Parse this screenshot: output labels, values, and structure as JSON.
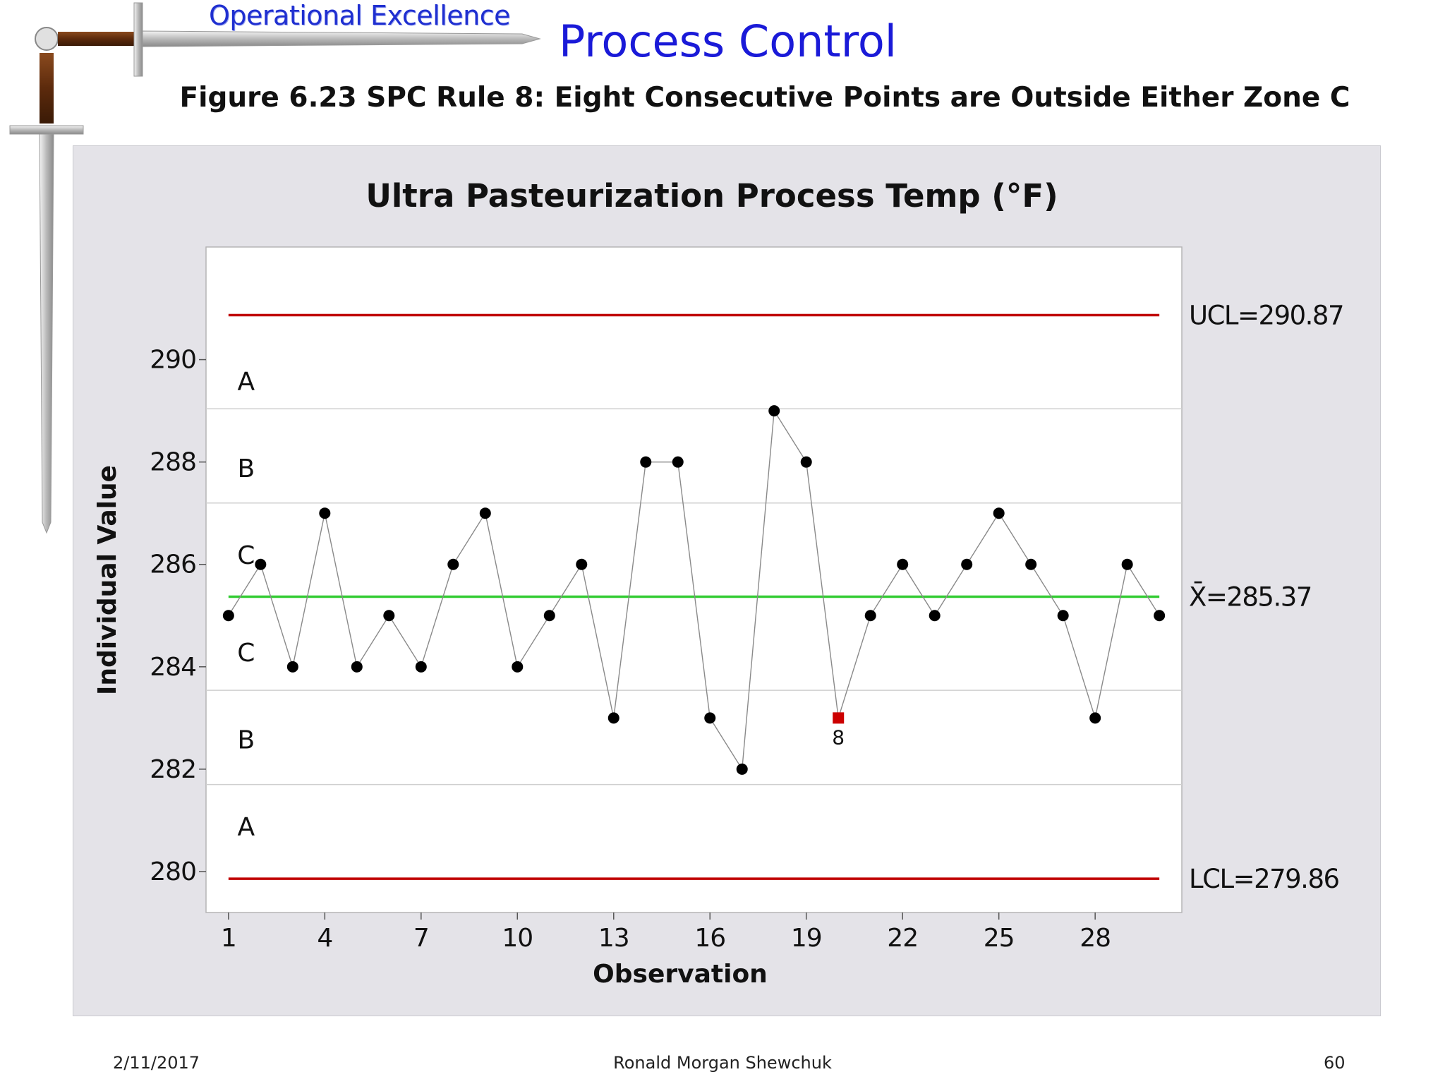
{
  "header": {
    "brand": "Operational Excellence",
    "title": "Process Control",
    "figure_caption": "Figure 6.23  SPC Rule 8:  Eight Consecutive Points are Outside Either Zone C"
  },
  "footer": {
    "date": "2/11/2017",
    "author": "Ronald Morgan Shewchuk",
    "page": "60"
  },
  "colors": {
    "control_limit": "#c00000",
    "center_line": "#33cc33",
    "point": "#000000",
    "flagged_point": "#cc0000",
    "panel": "#e4e3e8",
    "plot": "#ffffff"
  },
  "icons": [
    "sword-icon"
  ],
  "chart_data": {
    "type": "line",
    "title": "Ultra Pasteurization Process Temp (°F)",
    "xlabel": "Observation",
    "ylabel": "Individual Value",
    "ylim": [
      279.2,
      292.2
    ],
    "xlim": [
      0.3,
      30.7
    ],
    "yticks": [
      280,
      282,
      284,
      286,
      288,
      290
    ],
    "xticks": [
      1,
      4,
      7,
      10,
      13,
      16,
      19,
      22,
      25,
      28
    ],
    "x": [
      1,
      2,
      3,
      4,
      5,
      6,
      7,
      8,
      9,
      10,
      11,
      12,
      13,
      14,
      15,
      16,
      17,
      18,
      19,
      20,
      21,
      22,
      23,
      24,
      25,
      26,
      27,
      28,
      29,
      30
    ],
    "values": [
      285,
      286,
      284,
      287,
      284,
      285,
      284,
      286,
      287,
      284,
      285,
      286,
      283,
      288,
      288,
      283,
      282,
      289,
      288,
      283,
      285,
      286,
      285,
      286,
      287,
      286,
      285,
      283,
      286,
      285
    ],
    "control_limits": {
      "ucl": {
        "value": 290.87,
        "label": "UCL=290.87"
      },
      "center": {
        "value": 285.37,
        "label": "X̄=285.37"
      },
      "lcl": {
        "value": 279.86,
        "label": "LCL=279.86"
      }
    },
    "zones": [
      {
        "label": "A",
        "y": 289.6
      },
      {
        "label": "B",
        "y": 287.9
      },
      {
        "label": "C",
        "y": 286.2
      },
      {
        "label": "C",
        "y": 284.3
      },
      {
        "label": "B",
        "y": 282.6
      },
      {
        "label": "A",
        "y": 280.9
      }
    ],
    "zone_boundaries": [
      289.04,
      287.2,
      283.54,
      281.7
    ],
    "flagged": [
      {
        "x": 20,
        "label": "8"
      }
    ],
    "grid": false,
    "legend": "none"
  }
}
